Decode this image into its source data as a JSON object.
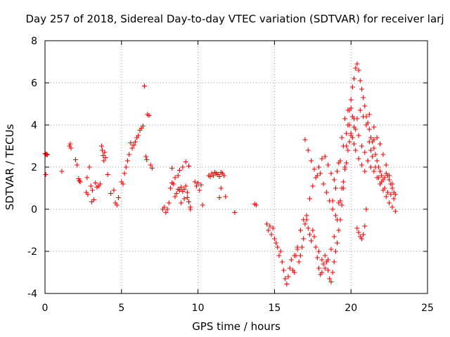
{
  "chart_data": {
    "type": "scatter",
    "title": "Day 257 of 2018, Sidereal Day-to-day VTEC variation (SDTVAR) for receiver larj",
    "xlabel": "GPS time / hours",
    "ylabel": "SDTVAR / TECUs",
    "xlim": [
      0,
      25
    ],
    "ylim": [
      -4,
      8
    ],
    "xticks": [
      0,
      5,
      10,
      15,
      20,
      25
    ],
    "yticks": [
      -4,
      -2,
      0,
      2,
      4,
      6,
      8
    ],
    "xtick_labels": [
      "0",
      "5",
      "10",
      "15",
      "20",
      "25"
    ],
    "ytick_labels": [
      "-4",
      "-2",
      "0",
      "2",
      "4",
      "6",
      "8"
    ],
    "grid": true,
    "marker": "plus",
    "color": "#ff0000",
    "series": [
      {
        "name": "SDTVAR",
        "x": [
          0.0,
          0.05,
          0.1,
          0.15,
          0.05,
          1.1,
          1.6,
          1.65,
          1.7,
          2.0,
          2.1,
          2.2,
          2.25,
          2.3,
          2.7,
          2.75,
          2.8,
          2.9,
          3.0,
          3.05,
          3.1,
          3.2,
          3.3,
          3.4,
          3.5,
          3.6,
          3.7,
          3.75,
          3.8,
          3.85,
          3.9,
          3.95,
          4.1,
          4.3,
          4.5,
          4.6,
          4.7,
          4.8,
          5.0,
          5.1,
          5.2,
          5.3,
          5.4,
          5.5,
          5.6,
          5.7,
          5.8,
          5.9,
          6.0,
          6.1,
          6.2,
          6.3,
          6.4,
          6.5,
          6.6,
          6.65,
          6.7,
          6.8,
          6.9,
          7.0,
          7.7,
          7.8,
          7.9,
          8.0,
          8.1,
          8.2,
          8.3,
          8.4,
          8.5,
          8.6,
          8.7,
          8.8,
          8.9,
          9.0,
          9.1,
          9.2,
          9.3,
          9.4,
          9.5,
          8.3,
          8.5,
          8.7,
          8.8,
          9.0,
          9.2,
          9.4,
          8.9,
          9.1,
          9.3,
          9.5,
          9.8,
          9.9,
          10.0,
          10.1,
          10.2,
          10.3,
          10.7,
          10.8,
          10.9,
          11.0,
          11.1,
          11.2,
          11.3,
          11.4,
          11.5,
          11.6,
          11.7,
          11.8,
          11.4,
          11.5,
          12.4,
          13.7,
          13.8,
          14.5,
          14.6,
          14.7,
          14.8,
          14.9,
          15.0,
          15.1,
          15.2,
          15.3,
          15.4,
          15.5,
          15.6,
          15.7,
          15.8,
          15.9,
          16.0,
          16.1,
          16.2,
          16.3,
          16.4,
          16.5,
          16.6,
          16.7,
          16.8,
          16.9,
          17.0,
          17.1,
          17.2,
          17.3,
          17.4,
          17.5,
          17.6,
          17.7,
          17.8,
          17.9,
          18.0,
          18.1,
          18.2,
          18.3,
          18.4,
          18.5,
          18.6,
          18.7,
          18.8,
          18.9,
          19.0,
          19.1,
          19.2,
          19.3,
          19.4,
          19.5,
          19.6,
          19.7,
          19.8,
          19.9,
          20.0,
          20.1,
          20.2,
          20.3,
          20.4,
          20.5,
          20.6,
          20.7,
          20.8,
          20.9,
          21.0,
          21.1,
          21.2,
          21.3,
          21.4,
          21.5,
          21.6,
          21.7,
          21.8,
          21.9,
          22.0,
          22.1,
          22.2,
          22.3,
          22.4,
          22.5,
          22.6,
          22.7,
          22.8,
          22.9,
          16.3,
          16.5,
          16.7,
          16.9,
          17.1,
          17.3,
          17.5,
          17.7,
          17.9,
          18.1,
          18.3,
          18.5,
          18.7,
          18.9,
          19.1,
          19.3,
          19.5,
          19.7,
          19.9,
          20.1,
          20.3,
          20.5,
          20.7,
          20.9,
          21.1,
          21.3,
          21.5,
          21.7,
          21.9,
          22.1,
          22.3,
          22.5,
          22.7,
          22.9,
          17.0,
          17.2,
          17.4,
          17.6,
          17.8,
          18.0,
          18.2,
          18.4,
          18.6,
          18.8,
          19.0,
          19.2,
          19.4,
          19.6,
          19.8,
          20.0,
          20.2,
          20.4,
          20.6,
          20.8,
          21.0,
          21.2,
          21.4,
          21.6,
          21.8,
          22.0,
          22.2,
          22.4,
          22.6,
          22.8,
          17.9,
          18.1,
          18.3,
          18.5,
          18.7,
          18.9,
          19.1,
          19.3,
          19.5,
          19.7,
          19.9,
          20.0,
          20.1,
          20.2,
          20.3,
          20.5,
          20.7,
          20.9,
          21.1,
          21.3,
          21.5,
          21.7,
          21.9,
          22.1,
          22.3,
          22.5,
          22.7,
          20.4,
          20.5,
          20.6,
          20.7,
          20.8,
          20.9,
          21.0,
          18.8,
          19.0,
          19.2,
          19.4,
          19.6,
          19.8,
          20.0,
          20.2,
          21.2,
          21.5
        ],
        "y": [
          2.65,
          2.6,
          2.62,
          2.58,
          1.65,
          1.8,
          3.0,
          3.1,
          2.9,
          2.35,
          2.1,
          1.45,
          1.35,
          1.3,
          0.8,
          1.5,
          0.7,
          2.0,
          1.1,
          0.35,
          0.9,
          0.45,
          1.25,
          1.05,
          1.1,
          1.2,
          3.0,
          2.8,
          2.55,
          2.3,
          2.7,
          2.45,
          1.65,
          0.75,
          0.9,
          0.3,
          0.2,
          0.55,
          1.3,
          1.2,
          1.7,
          2.0,
          2.3,
          2.6,
          3.15,
          2.9,
          3.05,
          3.2,
          3.4,
          3.5,
          3.75,
          3.85,
          3.95,
          5.85,
          2.5,
          2.35,
          4.5,
          4.45,
          2.1,
          1.95,
          0.0,
          0.1,
          -0.15,
          0.0,
          0.3,
          1.0,
          1.25,
          1.2,
          0.6,
          0.75,
          0.95,
          0.9,
          1.05,
          0.85,
          0.95,
          1.1,
          0.8,
          0.35,
          0.0,
          1.95,
          1.5,
          1.6,
          1.85,
          2.0,
          2.25,
          2.05,
          0.3,
          0.5,
          0.55,
          0.1,
          1.3,
          1.1,
          1.25,
          0.9,
          1.15,
          0.2,
          1.6,
          1.55,
          1.7,
          1.6,
          1.75,
          1.7,
          1.65,
          1.55,
          1.75,
          1.7,
          1.6,
          0.6,
          0.55,
          1.0,
          -0.15,
          0.25,
          0.2,
          -0.7,
          -1.0,
          -0.8,
          -1.2,
          -0.9,
          -1.4,
          -1.6,
          -1.8,
          -2.2,
          -2.0,
          -2.5,
          -2.9,
          -3.3,
          -3.55,
          -3.2,
          -2.8,
          -2.4,
          -2.9,
          -3.0,
          -2.2,
          -1.9,
          -2.5,
          -2.2,
          -1.8,
          -1.4,
          -0.7,
          -0.5,
          -0.9,
          -1.2,
          -1.5,
          -1.0,
          -1.3,
          -1.8,
          -2.3,
          -2.8,
          -3.1,
          -3.0,
          -2.6,
          -2.2,
          -2.5,
          -2.9,
          -3.3,
          -3.45,
          -3.0,
          -2.5,
          -2.0,
          -1.6,
          -1.0,
          -0.5,
          0.2,
          1.0,
          2.0,
          3.0,
          4.0,
          4.7,
          5.2,
          5.8,
          6.2,
          6.7,
          6.9,
          6.6,
          6.1,
          5.7,
          5.3,
          4.9,
          4.4,
          4.1,
          3.8,
          3.4,
          3.2,
          2.9,
          2.6,
          2.3,
          2.0,
          1.8,
          1.6,
          1.4,
          1.5,
          1.7,
          1.6,
          1.4,
          1.2,
          1.0,
          0.8,
          0.7,
          -2.2,
          -1.8,
          -1.0,
          -0.5,
          -0.3,
          0.5,
          1.1,
          1.5,
          2.0,
          2.4,
          2.5,
          2.1,
          1.7,
          1.4,
          1.8,
          2.3,
          3.0,
          3.6,
          4.0,
          4.4,
          3.8,
          3.5,
          3.0,
          2.7,
          2.3,
          2.0,
          1.8,
          1.5,
          1.2,
          0.9,
          0.6,
          0.3,
          0.1,
          -0.1,
          3.3,
          2.8,
          2.3,
          1.9,
          1.6,
          1.7,
          1.2,
          0.8,
          0.4,
          0.0,
          -0.3,
          0.3,
          1.0,
          1.9,
          2.8,
          3.5,
          3.9,
          4.3,
          4.7,
          4.4,
          4.0,
          3.2,
          2.5,
          2.0,
          1.5,
          1.3,
          1.0,
          0.8,
          0.7,
          0.5,
          -2.0,
          -2.4,
          -2.8,
          -2.4,
          -1.9,
          -1.3,
          -0.5,
          0.4,
          1.3,
          2.2,
          3.2,
          3.6,
          3.4,
          3.1,
          2.8,
          2.4,
          2.1,
          1.8,
          2.3,
          2.8,
          3.3,
          3.4,
          3.1,
          2.6,
          2.1,
          1.6,
          1.2,
          -0.9,
          -1.1,
          -1.3,
          -1.4,
          -1.2,
          -0.8,
          0.0,
          0.4,
          1.0,
          2.2,
          3.4,
          4.3,
          4.7,
          4.8,
          4.3,
          4.5,
          3.9
        ]
      }
    ]
  }
}
